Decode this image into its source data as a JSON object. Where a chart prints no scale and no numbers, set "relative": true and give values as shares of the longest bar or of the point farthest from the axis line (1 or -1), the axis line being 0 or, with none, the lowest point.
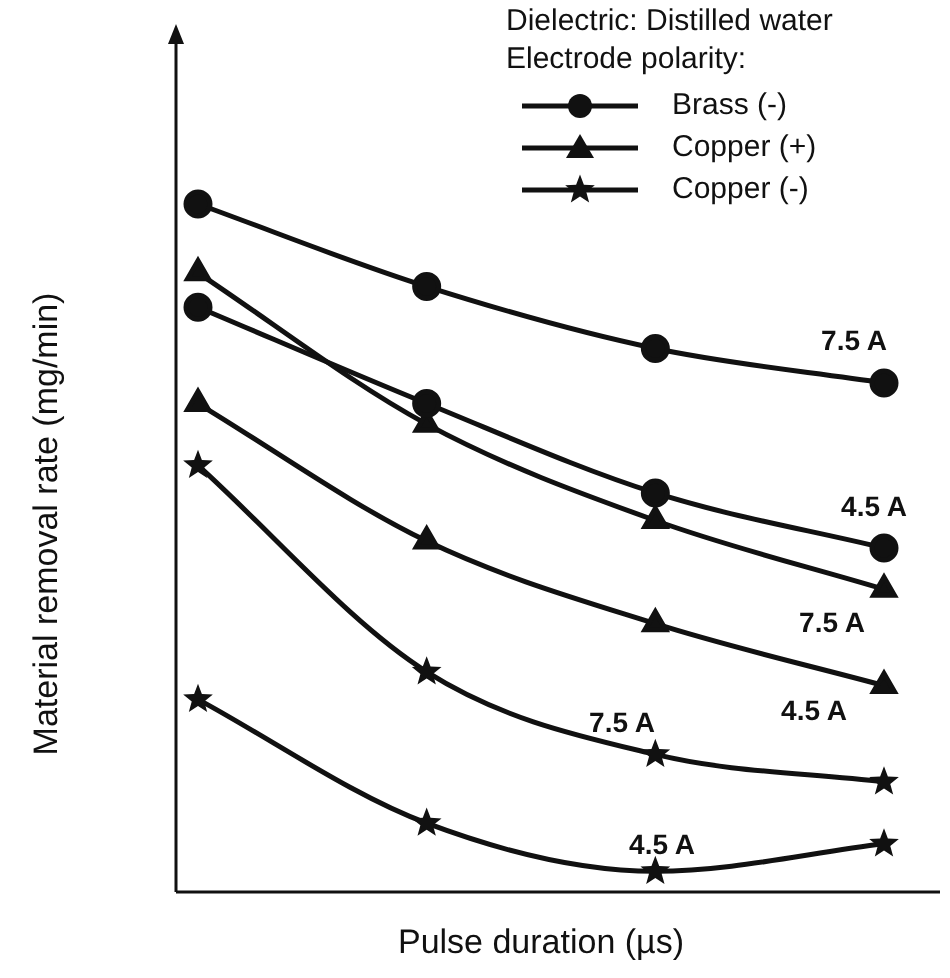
{
  "chart_data": {
    "type": "line",
    "relative": true,
    "subtitle": "Dielectric: Distilled water",
    "legend_title": "Electrode polarity:",
    "xlabel": "Pulse duration (µs)",
    "ylabel": "Material removal rate (mg/min)",
    "legend": "top right",
    "grid": false,
    "line_style": "solid",
    "categories": [
      null,
      null,
      null,
      null
    ],
    "series": [
      {
        "name": "Brass (-)",
        "color": "#111111",
        "marker": "circle",
        "values": [
          1,
          0.88,
          0.79,
          0.74
        ]
      },
      {
        "color": "#111111",
        "marker": "circle",
        "values": [
          0.85,
          0.71,
          0.58,
          0.5
        ]
      },
      {
        "name": "Copper (+)",
        "color": "#111111",
        "marker": "triangle",
        "values": [
          0.9,
          0.68,
          0.54,
          0.44
        ]
      },
      {
        "color": "#111111",
        "marker": "triangle",
        "values": [
          0.71,
          0.51,
          0.39,
          0.3
        ]
      },
      {
        "name": "Copper (-)",
        "color": "#111111",
        "marker": "star",
        "values": [
          0.62,
          0.32,
          0.2,
          0.16
        ]
      },
      {
        "color": "#111111",
        "marker": "star",
        "values": [
          0.28,
          0.1,
          0.03,
          0.07
        ]
      }
    ],
    "annotations": [
      "7.5 A",
      "4.5 A",
      "7.5 A",
      "4.5 A",
      "7.5 A",
      "4.5 A"
    ]
  }
}
